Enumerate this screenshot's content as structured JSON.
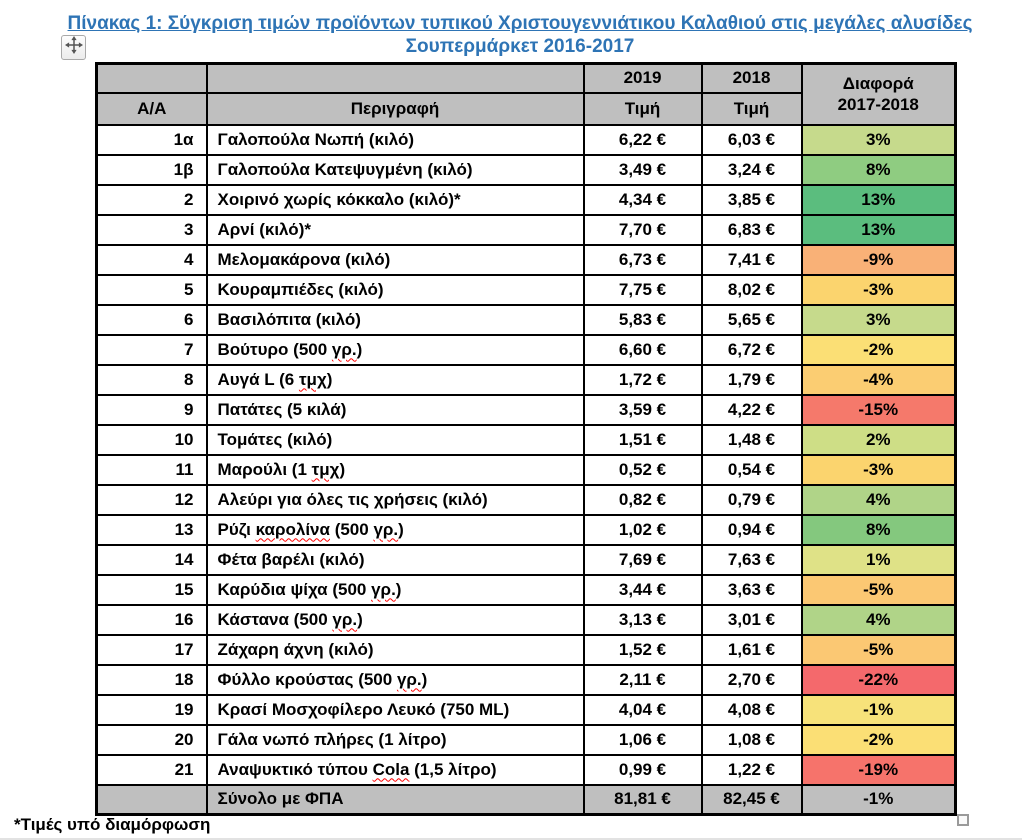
{
  "page": {
    "title_line1": "Πίνακας 1: Σύγκριση τιμών προϊόντων τυπικού Χριστουγεννιάτικου Καλαθιού στις μεγάλες αλυσίδες",
    "title_line2": "Σουπερμάρκετ 2016-2017",
    "title_color": "#2E74B5",
    "footnote": "*Τιμές υπό διαμόρφωση"
  },
  "table": {
    "header": {
      "col_id": "Α/Α",
      "col_desc": "Περιγραφή",
      "col_2019_year": "2019",
      "col_2018_year": "2018",
      "col_price": "Τιμή",
      "col_diff_line1": "Διαφορά",
      "col_diff_line2": "2017-2018",
      "header_bg": "#BFBFBF"
    },
    "rows": [
      {
        "id": "1α",
        "desc": "Γαλοπούλα Νωπή (κιλό)",
        "price_2019": "6,22 €",
        "price_2018": "6,03 €",
        "diff": "3%",
        "diff_bg": "#C6DA8C",
        "misspelled": []
      },
      {
        "id": "1β",
        "desc": "Γαλοπούλα Κατεψυγμένη (κιλό)",
        "price_2019": "3,49 €",
        "price_2018": "3,24 €",
        "diff": "8%",
        "diff_bg": "#8FCC81",
        "misspelled": []
      },
      {
        "id": "2",
        "desc": "Χοιρινό χωρίς κόκκαλο (κιλό)*",
        "price_2019": "4,34 €",
        "price_2018": "3,85 €",
        "diff": "13%",
        "diff_bg": "#5BBD7E",
        "misspelled": []
      },
      {
        "id": "3",
        "desc": "Αρνί (κιλό)*",
        "price_2019": "7,70 €",
        "price_2018": "6,83 €",
        "diff": "13%",
        "diff_bg": "#5BBD7E",
        "misspelled": []
      },
      {
        "id": "4",
        "desc": "Μελομακάρονα (κιλό)",
        "price_2019": "6,73 €",
        "price_2018": "7,41 €",
        "diff": "-9%",
        "diff_bg": "#F9B177",
        "misspelled": []
      },
      {
        "id": "5",
        "desc": "Κουραμπιέδες (κιλό)",
        "price_2019": "7,75 €",
        "price_2018": "8,02 €",
        "diff": "-3%",
        "diff_bg": "#FBD46E",
        "misspelled": []
      },
      {
        "id": "6",
        "desc": "Βασιλόπιτα (κιλό)",
        "price_2019": "5,83 €",
        "price_2018": "5,65 €",
        "diff": "3%",
        "diff_bg": "#C6DA8C",
        "misspelled": []
      },
      {
        "id": "7",
        "desc": "Βούτυρο (500 γρ.)",
        "price_2019": "6,60 €",
        "price_2018": "6,72 €",
        "diff": "-2%",
        "diff_bg": "#FBDF75",
        "misspelled": [
          "γρ."
        ]
      },
      {
        "id": "8",
        "desc": "Αυγά L (6 τμχ)",
        "price_2019": "1,72 €",
        "price_2018": "1,79 €",
        "diff": "-4%",
        "diff_bg": "#FBCD72",
        "misspelled": [
          "τμχ"
        ]
      },
      {
        "id": "9",
        "desc": "Πατάτες (5 κιλά)",
        "price_2019": "3,59 €",
        "price_2018": "4,22 €",
        "diff": "-15%",
        "diff_bg": "#F5796B",
        "misspelled": []
      },
      {
        "id": "10",
        "desc": "Τομάτες (κιλό)",
        "price_2019": "1,51 €",
        "price_2018": "1,48 €",
        "diff": "2%",
        "diff_bg": "#CEDE86",
        "misspelled": []
      },
      {
        "id": "11",
        "desc": "Μαρούλι (1 τμχ)",
        "price_2019": "0,52 €",
        "price_2018": "0,54 €",
        "diff": "-3%",
        "diff_bg": "#FBD46E",
        "misspelled": [
          "τμχ"
        ]
      },
      {
        "id": "12",
        "desc": "Αλεύρι για όλες τις χρήσεις (κιλό)",
        "price_2019": "0,82 €",
        "price_2018": "0,79 €",
        "diff": "4%",
        "diff_bg": "#B0D488",
        "misspelled": []
      },
      {
        "id": "13",
        "desc": "Ρύζι καρολίνα (500 γρ.)",
        "price_2019": "1,02 €",
        "price_2018": "0,94 €",
        "diff": "8%",
        "diff_bg": "#84C87E",
        "misspelled": [
          "καρολίνα",
          "γρ."
        ]
      },
      {
        "id": "14",
        "desc": "Φέτα βαρέλι (κιλό)",
        "price_2019": "7,69 €",
        "price_2018": "7,63 €",
        "diff": "1%",
        "diff_bg": "#DFE287",
        "misspelled": []
      },
      {
        "id": "15",
        "desc": "Καρύδια ψίχα (500 γρ.)",
        "price_2019": "3,44 €",
        "price_2018": "3,63 €",
        "diff": "-5%",
        "diff_bg": "#FBC873",
        "misspelled": [
          "γρ."
        ]
      },
      {
        "id": "16",
        "desc": "Κάστανα (500 γρ.)",
        "price_2019": "3,13 €",
        "price_2018": "3,01 €",
        "diff": "4%",
        "diff_bg": "#B0D488",
        "misspelled": [
          "γρ."
        ]
      },
      {
        "id": "17",
        "desc": "Ζάχαρη άχνη (κιλό)",
        "price_2019": "1,52 €",
        "price_2018": "1,61 €",
        "diff": "-5%",
        "diff_bg": "#FBC873",
        "misspelled": []
      },
      {
        "id": "18",
        "desc": "Φύλλο κρούστας (500 γρ.)",
        "price_2019": "2,11 €",
        "price_2018": "2,70 €",
        "diff": "-22%",
        "diff_bg": "#F4696C",
        "misspelled": [
          "γρ."
        ]
      },
      {
        "id": "19",
        "desc": "Κρασί Μοσχοφίλερο Λευκό (750 ML)",
        "price_2019": "4,04 €",
        "price_2018": "4,08 €",
        "diff": "-1%",
        "diff_bg": "#F7E27A",
        "misspelled": []
      },
      {
        "id": "20",
        "desc": "Γάλα νωπό πλήρες (1 λίτρο)",
        "price_2019": "1,06 €",
        "price_2018": "1,08 €",
        "diff": "-2%",
        "diff_bg": "#FBDF75",
        "misspelled": []
      },
      {
        "id": "21",
        "desc": "Αναψυκτικό τύπου Cola (1,5 λίτρο)",
        "price_2019": "0,99 €",
        "price_2018": "1,22 €",
        "diff": "-19%",
        "diff_bg": "#F6736B",
        "misspelled": [
          "Cola"
        ]
      }
    ],
    "total": {
      "label": "Σύνολο με ΦΠΑ",
      "price_2019": "81,81 €",
      "price_2018": "82,45 €",
      "diff": "-1%",
      "bg": "#BFBFBF"
    }
  }
}
